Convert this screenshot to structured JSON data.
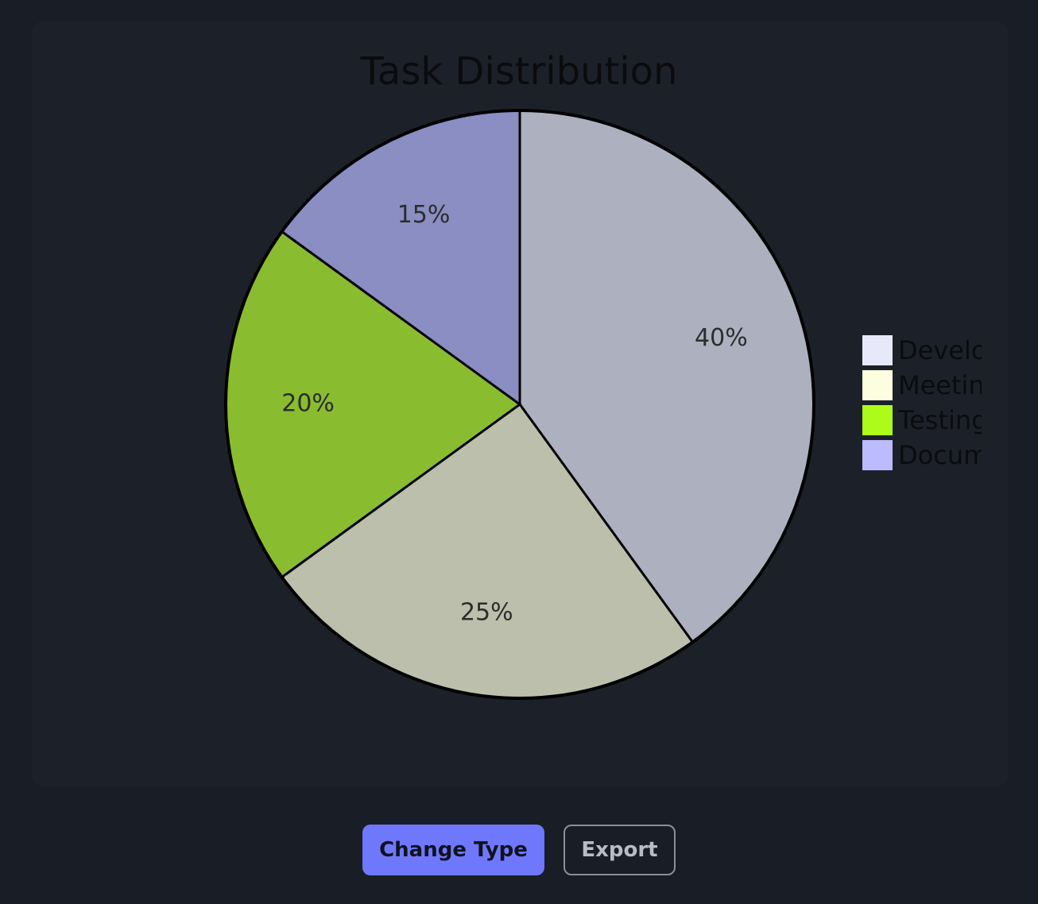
{
  "chart_data": {
    "type": "pie",
    "title": "Task Distribution",
    "categories": [
      "Development",
      "Meetings",
      "Testing",
      "Documentation"
    ],
    "values": [
      40,
      25,
      20,
      15
    ],
    "data_labels": [
      "40%",
      "25%",
      "20%",
      "15%"
    ],
    "legend_labels": [
      "Develo",
      "Meetin",
      "Testing",
      "Docum"
    ],
    "legend_colors": [
      "#e8e8fb",
      "#fdfde0",
      "#acfb1a",
      "#bbbbfd"
    ],
    "slice_colors": [
      "#adb0bf",
      "#bcbfab",
      "#8abc30",
      "#8a8ec2"
    ],
    "legend_placement": "right",
    "start_angle_deg": 0,
    "direction": "clockwise"
  },
  "controls": {
    "change_type_label": "Change Type",
    "export_label": "Export"
  }
}
